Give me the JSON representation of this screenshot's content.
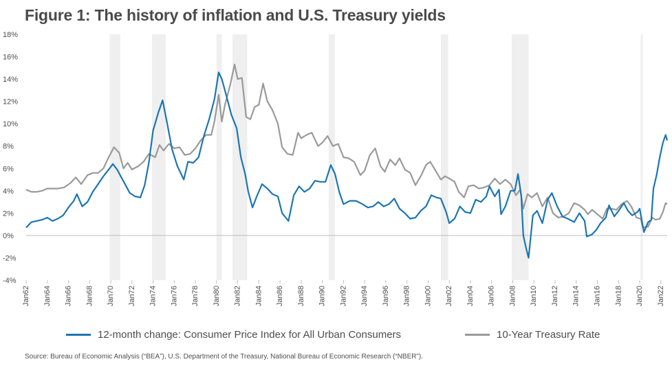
{
  "title": "Figure 1: The history of inflation and U.S. Treasury yields",
  "source": "Source:  Bureau of Economic Analysis (“BEA”), U.S. Department of the Treasury, National Bureau of Economic Research (“NBER”).",
  "legend": {
    "cpi_label": "12-month change: Consumer Price Index for All Urban Consumers",
    "treasury_label": "10-Year Treasury Rate"
  },
  "colors": {
    "cpi": "#1b75b3",
    "treasury": "#999999",
    "recession": "#efefef",
    "axis": "#bdbdbd",
    "text": "#4d4d4d"
  },
  "chart_data": {
    "type": "line",
    "title": "Figure 1: The history of inflation and U.S. Treasury yields",
    "xlabel": "",
    "ylabel": "",
    "x_range": [
      1962.0,
      2022.6
    ],
    "ylim": [
      -4,
      18
    ],
    "y_ticks": [
      -4,
      -2,
      0,
      2,
      4,
      6,
      8,
      10,
      12,
      14,
      16,
      18
    ],
    "y_tick_labels": [
      "-4%",
      "-2%",
      "0%",
      "2%",
      "4%",
      "6%",
      "8%",
      "10%",
      "12%",
      "14%",
      "16%",
      "18%"
    ],
    "x_ticks": [
      1962,
      1964,
      1966,
      1968,
      1970,
      1972,
      1974,
      1976,
      1978,
      1980,
      1982,
      1984,
      1986,
      1988,
      1990,
      1992,
      1994,
      1996,
      1998,
      2000,
      2002,
      2004,
      2006,
      2008,
      2010,
      2012,
      2014,
      2016,
      2018,
      2020,
      2022
    ],
    "x_tick_labels": [
      "Jan62",
      "Jan64",
      "Jan66",
      "Jan68",
      "Jan70",
      "Jan72",
      "Jan74",
      "Jan76",
      "Jan78",
      "Jan80",
      "Jan82",
      "Jan84",
      "Jan86",
      "Jan88",
      "Jan90",
      "Jan92",
      "Jan94",
      "Jan96",
      "Jan98",
      "Jan00",
      "Jan02",
      "Jan04",
      "Jan06",
      "Jan08",
      "Jan10",
      "Jan12",
      "Jan14",
      "Jan16",
      "Jan18",
      "Jan20",
      "Jan22"
    ],
    "recessions": [
      [
        1969.9,
        1970.9
      ],
      [
        1973.9,
        1975.2
      ],
      [
        1980.0,
        1980.5
      ],
      [
        1981.5,
        1982.9
      ],
      [
        1990.6,
        1991.2
      ],
      [
        2001.2,
        2001.9
      ],
      [
        2007.9,
        2009.5
      ],
      [
        2020.1,
        2020.3
      ]
    ],
    "grid": false,
    "legend_position": "bottom",
    "series": [
      {
        "name": "12-month change: Consumer Price Index for All Urban Consumers",
        "points": [
          [
            1962.0,
            0.7
          ],
          [
            1962.5,
            1.2
          ],
          [
            1963.0,
            1.3
          ],
          [
            1963.5,
            1.4
          ],
          [
            1964.0,
            1.6
          ],
          [
            1964.5,
            1.3
          ],
          [
            1965.0,
            1.5
          ],
          [
            1965.5,
            1.8
          ],
          [
            1966.0,
            2.5
          ],
          [
            1966.5,
            3.1
          ],
          [
            1966.8,
            3.7
          ],
          [
            1967.3,
            2.6
          ],
          [
            1967.8,
            3.0
          ],
          [
            1968.3,
            3.9
          ],
          [
            1968.8,
            4.6
          ],
          [
            1969.3,
            5.3
          ],
          [
            1969.8,
            5.9
          ],
          [
            1970.2,
            6.4
          ],
          [
            1970.6,
            5.9
          ],
          [
            1971.0,
            5.2
          ],
          [
            1971.4,
            4.5
          ],
          [
            1971.8,
            3.8
          ],
          [
            1972.3,
            3.5
          ],
          [
            1972.8,
            3.4
          ],
          [
            1973.2,
            4.5
          ],
          [
            1973.6,
            6.5
          ],
          [
            1974.0,
            9.4
          ],
          [
            1974.5,
            11.0
          ],
          [
            1974.9,
            12.1
          ],
          [
            1975.3,
            10.2
          ],
          [
            1975.8,
            7.7
          ],
          [
            1976.3,
            6.2
          ],
          [
            1976.9,
            5.0
          ],
          [
            1977.3,
            6.6
          ],
          [
            1977.8,
            6.5
          ],
          [
            1978.3,
            7.0
          ],
          [
            1978.8,
            8.9
          ],
          [
            1979.3,
            10.4
          ],
          [
            1979.8,
            12.2
          ],
          [
            1980.2,
            14.6
          ],
          [
            1980.5,
            14.0
          ],
          [
            1980.9,
            12.6
          ],
          [
            1981.4,
            10.8
          ],
          [
            1981.9,
            9.6
          ],
          [
            1982.3,
            7.0
          ],
          [
            1982.7,
            5.5
          ],
          [
            1983.0,
            3.9
          ],
          [
            1983.4,
            2.5
          ],
          [
            1983.8,
            3.5
          ],
          [
            1984.3,
            4.6
          ],
          [
            1984.8,
            4.2
          ],
          [
            1985.3,
            3.7
          ],
          [
            1985.8,
            3.5
          ],
          [
            1986.2,
            2.0
          ],
          [
            1986.8,
            1.3
          ],
          [
            1987.3,
            3.6
          ],
          [
            1987.8,
            4.4
          ],
          [
            1988.3,
            3.9
          ],
          [
            1988.8,
            4.2
          ],
          [
            1989.3,
            4.9
          ],
          [
            1989.8,
            4.8
          ],
          [
            1990.3,
            4.8
          ],
          [
            1990.8,
            6.3
          ],
          [
            1991.2,
            5.5
          ],
          [
            1991.6,
            3.9
          ],
          [
            1992.0,
            2.8
          ],
          [
            1992.6,
            3.1
          ],
          [
            1993.2,
            3.1
          ],
          [
            1993.8,
            2.8
          ],
          [
            1994.3,
            2.5
          ],
          [
            1994.8,
            2.6
          ],
          [
            1995.3,
            3.0
          ],
          [
            1995.8,
            2.6
          ],
          [
            1996.3,
            2.8
          ],
          [
            1996.8,
            3.3
          ],
          [
            1997.3,
            2.4
          ],
          [
            1997.8,
            2.0
          ],
          [
            1998.3,
            1.5
          ],
          [
            1998.8,
            1.6
          ],
          [
            1999.3,
            2.2
          ],
          [
            1999.8,
            2.6
          ],
          [
            2000.3,
            3.6
          ],
          [
            2000.8,
            3.4
          ],
          [
            2001.2,
            3.3
          ],
          [
            2001.7,
            2.1
          ],
          [
            2002.0,
            1.1
          ],
          [
            2002.5,
            1.5
          ],
          [
            2003.0,
            2.6
          ],
          [
            2003.5,
            2.1
          ],
          [
            2004.0,
            2.0
          ],
          [
            2004.5,
            3.2
          ],
          [
            2005.0,
            3.0
          ],
          [
            2005.5,
            3.5
          ],
          [
            2005.8,
            4.4
          ],
          [
            2006.3,
            3.5
          ],
          [
            2006.7,
            4.1
          ],
          [
            2006.9,
            1.9
          ],
          [
            2007.3,
            2.6
          ],
          [
            2007.8,
            4.0
          ],
          [
            2008.2,
            4.0
          ],
          [
            2008.5,
            5.5
          ],
          [
            2008.8,
            3.6
          ],
          [
            2009.0,
            0.0
          ],
          [
            2009.3,
            -1.3
          ],
          [
            2009.5,
            -2.0
          ],
          [
            2009.9,
            1.8
          ],
          [
            2010.3,
            2.2
          ],
          [
            2010.8,
            1.1
          ],
          [
            2011.3,
            3.2
          ],
          [
            2011.7,
            3.8
          ],
          [
            2012.2,
            2.6
          ],
          [
            2012.7,
            1.7
          ],
          [
            2013.2,
            1.5
          ],
          [
            2013.8,
            1.2
          ],
          [
            2014.3,
            2.0
          ],
          [
            2014.8,
            1.3
          ],
          [
            2015.0,
            -0.1
          ],
          [
            2015.5,
            0.1
          ],
          [
            2015.9,
            0.5
          ],
          [
            2016.3,
            1.1
          ],
          [
            2016.8,
            1.6
          ],
          [
            2017.1,
            2.7
          ],
          [
            2017.6,
            1.7
          ],
          [
            2018.0,
            2.2
          ],
          [
            2018.5,
            2.9
          ],
          [
            2018.9,
            2.2
          ],
          [
            2019.3,
            1.8
          ],
          [
            2019.8,
            2.1
          ],
          [
            2020.0,
            2.4
          ],
          [
            2020.4,
            0.3
          ],
          [
            2020.8,
            1.2
          ],
          [
            2021.1,
            1.4
          ],
          [
            2021.3,
            4.2
          ],
          [
            2021.6,
            5.4
          ],
          [
            2021.9,
            7.0
          ],
          [
            2022.2,
            8.3
          ],
          [
            2022.45,
            9.0
          ],
          [
            2022.6,
            8.5
          ]
        ]
      },
      {
        "name": "10-Year Treasury Rate",
        "points": [
          [
            1962.0,
            4.1
          ],
          [
            1962.5,
            3.9
          ],
          [
            1963.0,
            3.9
          ],
          [
            1963.5,
            4.0
          ],
          [
            1964.0,
            4.2
          ],
          [
            1965.0,
            4.2
          ],
          [
            1965.6,
            4.3
          ],
          [
            1966.2,
            4.7
          ],
          [
            1966.7,
            5.2
          ],
          [
            1967.2,
            4.6
          ],
          [
            1967.8,
            5.4
          ],
          [
            1968.3,
            5.6
          ],
          [
            1968.8,
            5.6
          ],
          [
            1969.3,
            6.0
          ],
          [
            1969.8,
            7.0
          ],
          [
            1970.3,
            7.9
          ],
          [
            1970.8,
            7.4
          ],
          [
            1971.2,
            6.0
          ],
          [
            1971.6,
            6.5
          ],
          [
            1972.0,
            5.9
          ],
          [
            1972.6,
            6.2
          ],
          [
            1973.1,
            6.6
          ],
          [
            1973.6,
            7.3
          ],
          [
            1974.2,
            7.0
          ],
          [
            1974.6,
            8.1
          ],
          [
            1975.0,
            7.6
          ],
          [
            1975.5,
            8.2
          ],
          [
            1976.0,
            7.8
          ],
          [
            1976.5,
            7.9
          ],
          [
            1977.0,
            7.2
          ],
          [
            1977.5,
            7.3
          ],
          [
            1978.0,
            7.8
          ],
          [
            1978.5,
            8.5
          ],
          [
            1979.0,
            9.0
          ],
          [
            1979.5,
            9.0
          ],
          [
            1979.8,
            10.2
          ],
          [
            1980.2,
            12.6
          ],
          [
            1980.5,
            10.2
          ],
          [
            1980.8,
            11.7
          ],
          [
            1981.3,
            13.5
          ],
          [
            1981.7,
            15.3
          ],
          [
            1982.0,
            14.0
          ],
          [
            1982.4,
            14.1
          ],
          [
            1982.8,
            10.6
          ],
          [
            1983.2,
            10.4
          ],
          [
            1983.6,
            11.5
          ],
          [
            1984.0,
            11.7
          ],
          [
            1984.4,
            13.6
          ],
          [
            1984.8,
            12.0
          ],
          [
            1985.3,
            11.2
          ],
          [
            1985.8,
            10.0
          ],
          [
            1986.2,
            7.9
          ],
          [
            1986.7,
            7.3
          ],
          [
            1987.2,
            7.2
          ],
          [
            1987.7,
            9.2
          ],
          [
            1988.0,
            8.7
          ],
          [
            1988.5,
            9.0
          ],
          [
            1989.0,
            9.2
          ],
          [
            1989.6,
            8.0
          ],
          [
            1990.0,
            8.3
          ],
          [
            1990.5,
            8.9
          ],
          [
            1991.0,
            8.0
          ],
          [
            1991.5,
            8.2
          ],
          [
            1992.0,
            7.0
          ],
          [
            1992.5,
            6.9
          ],
          [
            1993.0,
            6.6
          ],
          [
            1993.6,
            5.4
          ],
          [
            1994.0,
            5.8
          ],
          [
            1994.5,
            7.2
          ],
          [
            1995.0,
            7.8
          ],
          [
            1995.5,
            6.2
          ],
          [
            1995.9,
            5.7
          ],
          [
            1996.4,
            6.8
          ],
          [
            1996.9,
            6.3
          ],
          [
            1997.3,
            6.9
          ],
          [
            1997.8,
            5.9
          ],
          [
            1998.3,
            5.6
          ],
          [
            1998.8,
            4.5
          ],
          [
            1999.3,
            5.3
          ],
          [
            1999.8,
            6.3
          ],
          [
            2000.2,
            6.6
          ],
          [
            2000.7,
            5.8
          ],
          [
            2001.2,
            5.0
          ],
          [
            2001.6,
            5.3
          ],
          [
            2002.0,
            5.1
          ],
          [
            2002.5,
            4.8
          ],
          [
            2002.9,
            3.9
          ],
          [
            2003.4,
            3.4
          ],
          [
            2003.8,
            4.4
          ],
          [
            2004.3,
            4.5
          ],
          [
            2004.8,
            4.2
          ],
          [
            2005.3,
            4.3
          ],
          [
            2005.8,
            4.5
          ],
          [
            2006.3,
            5.1
          ],
          [
            2006.8,
            4.6
          ],
          [
            2007.3,
            5.0
          ],
          [
            2007.8,
            4.6
          ],
          [
            2008.3,
            3.6
          ],
          [
            2008.7,
            4.1
          ],
          [
            2009.0,
            2.4
          ],
          [
            2009.4,
            3.7
          ],
          [
            2009.8,
            3.4
          ],
          [
            2010.3,
            3.8
          ],
          [
            2010.8,
            2.6
          ],
          [
            2011.3,
            3.4
          ],
          [
            2011.8,
            2.0
          ],
          [
            2012.3,
            1.6
          ],
          [
            2012.8,
            1.7
          ],
          [
            2013.3,
            2.0
          ],
          [
            2013.8,
            2.9
          ],
          [
            2014.3,
            2.7
          ],
          [
            2014.8,
            2.3
          ],
          [
            2015.1,
            1.9
          ],
          [
            2015.5,
            2.3
          ],
          [
            2016.0,
            1.9
          ],
          [
            2016.5,
            1.5
          ],
          [
            2016.9,
            2.4
          ],
          [
            2017.3,
            2.4
          ],
          [
            2017.8,
            2.3
          ],
          [
            2018.3,
            2.8
          ],
          [
            2018.8,
            3.1
          ],
          [
            2019.2,
            2.6
          ],
          [
            2019.7,
            1.6
          ],
          [
            2020.1,
            1.5
          ],
          [
            2020.3,
            0.7
          ],
          [
            2020.8,
            0.8
          ],
          [
            2021.2,
            1.6
          ],
          [
            2021.5,
            1.4
          ],
          [
            2021.9,
            1.5
          ],
          [
            2022.2,
            2.1
          ],
          [
            2022.45,
            2.9
          ],
          [
            2022.6,
            2.8
          ]
        ]
      }
    ]
  }
}
